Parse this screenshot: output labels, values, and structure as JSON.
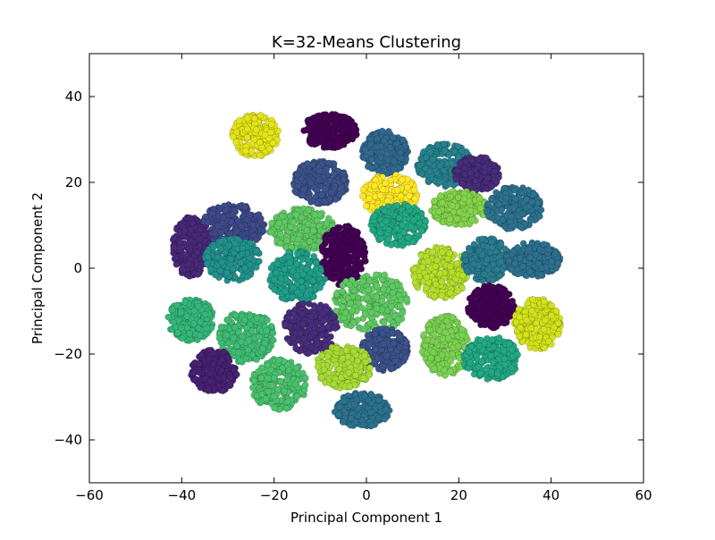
{
  "chart_data": {
    "type": "scatter",
    "title": "K=32-Means Clustering",
    "xlabel": "Principal Component 1",
    "ylabel": "Principal Component 2",
    "xlim": [
      -60,
      60
    ],
    "ylim": [
      -50,
      50
    ],
    "xticks": [
      -60,
      -40,
      -20,
      0,
      20,
      40,
      60
    ],
    "xtick_labels": [
      "−60",
      "−40",
      "−20",
      "0",
      "20",
      "40",
      "60"
    ],
    "yticks": [
      -40,
      -20,
      0,
      20,
      40
    ],
    "ytick_labels": [
      "−40",
      "−20",
      "0",
      "20",
      "40"
    ],
    "grid": false,
    "legend": "none",
    "colormap": "viridis",
    "clusters": [
      {
        "center": [
          -24,
          31
        ],
        "spread": [
          5,
          5
        ],
        "color": "#e4e419"
      },
      {
        "center": [
          -8,
          32
        ],
        "spread": [
          6,
          4
        ],
        "color": "#440154"
      },
      {
        "center": [
          -10,
          20
        ],
        "spread": [
          6,
          5
        ],
        "color": "#3b528b"
      },
      {
        "center": [
          4,
          27
        ],
        "spread": [
          5,
          5
        ],
        "color": "#31688e"
      },
      {
        "center": [
          5,
          17
        ],
        "spread": [
          6,
          5
        ],
        "color": "#fde725"
      },
      {
        "center": [
          17,
          24
        ],
        "spread": [
          6,
          5
        ],
        "color": "#26828e"
      },
      {
        "center": [
          24,
          22
        ],
        "spread": [
          5,
          4
        ],
        "color": "#472d7b"
      },
      {
        "center": [
          20,
          14
        ],
        "spread": [
          6,
          4
        ],
        "color": "#84d44b"
      },
      {
        "center": [
          32,
          14
        ],
        "spread": [
          6,
          5
        ],
        "color": "#2c728e"
      },
      {
        "center": [
          -29,
          10
        ],
        "spread": [
          7,
          5
        ],
        "color": "#3e4989"
      },
      {
        "center": [
          -38,
          5
        ],
        "spread": [
          4,
          7
        ],
        "color": "#482878"
      },
      {
        "center": [
          -29,
          2
        ],
        "spread": [
          6,
          5
        ],
        "color": "#21918c"
      },
      {
        "center": [
          -14,
          9
        ],
        "spread": [
          7,
          5
        ],
        "color": "#5ec962"
      },
      {
        "center": [
          -5,
          3
        ],
        "spread": [
          5,
          7
        ],
        "color": "#440154"
      },
      {
        "center": [
          7,
          10
        ],
        "spread": [
          6,
          5
        ],
        "color": "#22a884"
      },
      {
        "center": [
          -15,
          -2
        ],
        "spread": [
          6,
          6
        ],
        "color": "#1f9e89"
      },
      {
        "center": [
          16,
          -1
        ],
        "spread": [
          6,
          6
        ],
        "color": "#b5de2b"
      },
      {
        "center": [
          26,
          2
        ],
        "spread": [
          5,
          5
        ],
        "color": "#297b8e"
      },
      {
        "center": [
          36,
          2
        ],
        "spread": [
          6,
          4
        ],
        "color": "#2d708e"
      },
      {
        "center": [
          1,
          -8
        ],
        "spread": [
          8,
          7
        ],
        "color": "#5ec962"
      },
      {
        "center": [
          -12,
          -14
        ],
        "spread": [
          6,
          6
        ],
        "color": "#472d7b"
      },
      {
        "center": [
          27,
          -9
        ],
        "spread": [
          5,
          5
        ],
        "color": "#440154"
      },
      {
        "center": [
          37,
          -13
        ],
        "spread": [
          5,
          6
        ],
        "color": "#d2e21b"
      },
      {
        "center": [
          -38,
          -12
        ],
        "spread": [
          5,
          5
        ],
        "color": "#35b779"
      },
      {
        "center": [
          -26,
          -16
        ],
        "spread": [
          6,
          6
        ],
        "color": "#3fbc73"
      },
      {
        "center": [
          17,
          -18
        ],
        "spread": [
          5,
          7
        ],
        "color": "#7ad151"
      },
      {
        "center": [
          27,
          -21
        ],
        "spread": [
          6,
          5
        ],
        "color": "#22a884"
      },
      {
        "center": [
          4,
          -19
        ],
        "spread": [
          5,
          5
        ],
        "color": "#3b528b"
      },
      {
        "center": [
          -5,
          -23
        ],
        "spread": [
          6,
          5
        ],
        "color": "#a8db34"
      },
      {
        "center": [
          -33,
          -24
        ],
        "spread": [
          5,
          5
        ],
        "color": "#482173"
      },
      {
        "center": [
          -19,
          -27
        ],
        "spread": [
          6,
          6
        ],
        "color": "#4ac16d"
      },
      {
        "center": [
          -1,
          -33
        ],
        "spread": [
          6,
          4
        ],
        "color": "#2c728e"
      }
    ]
  }
}
